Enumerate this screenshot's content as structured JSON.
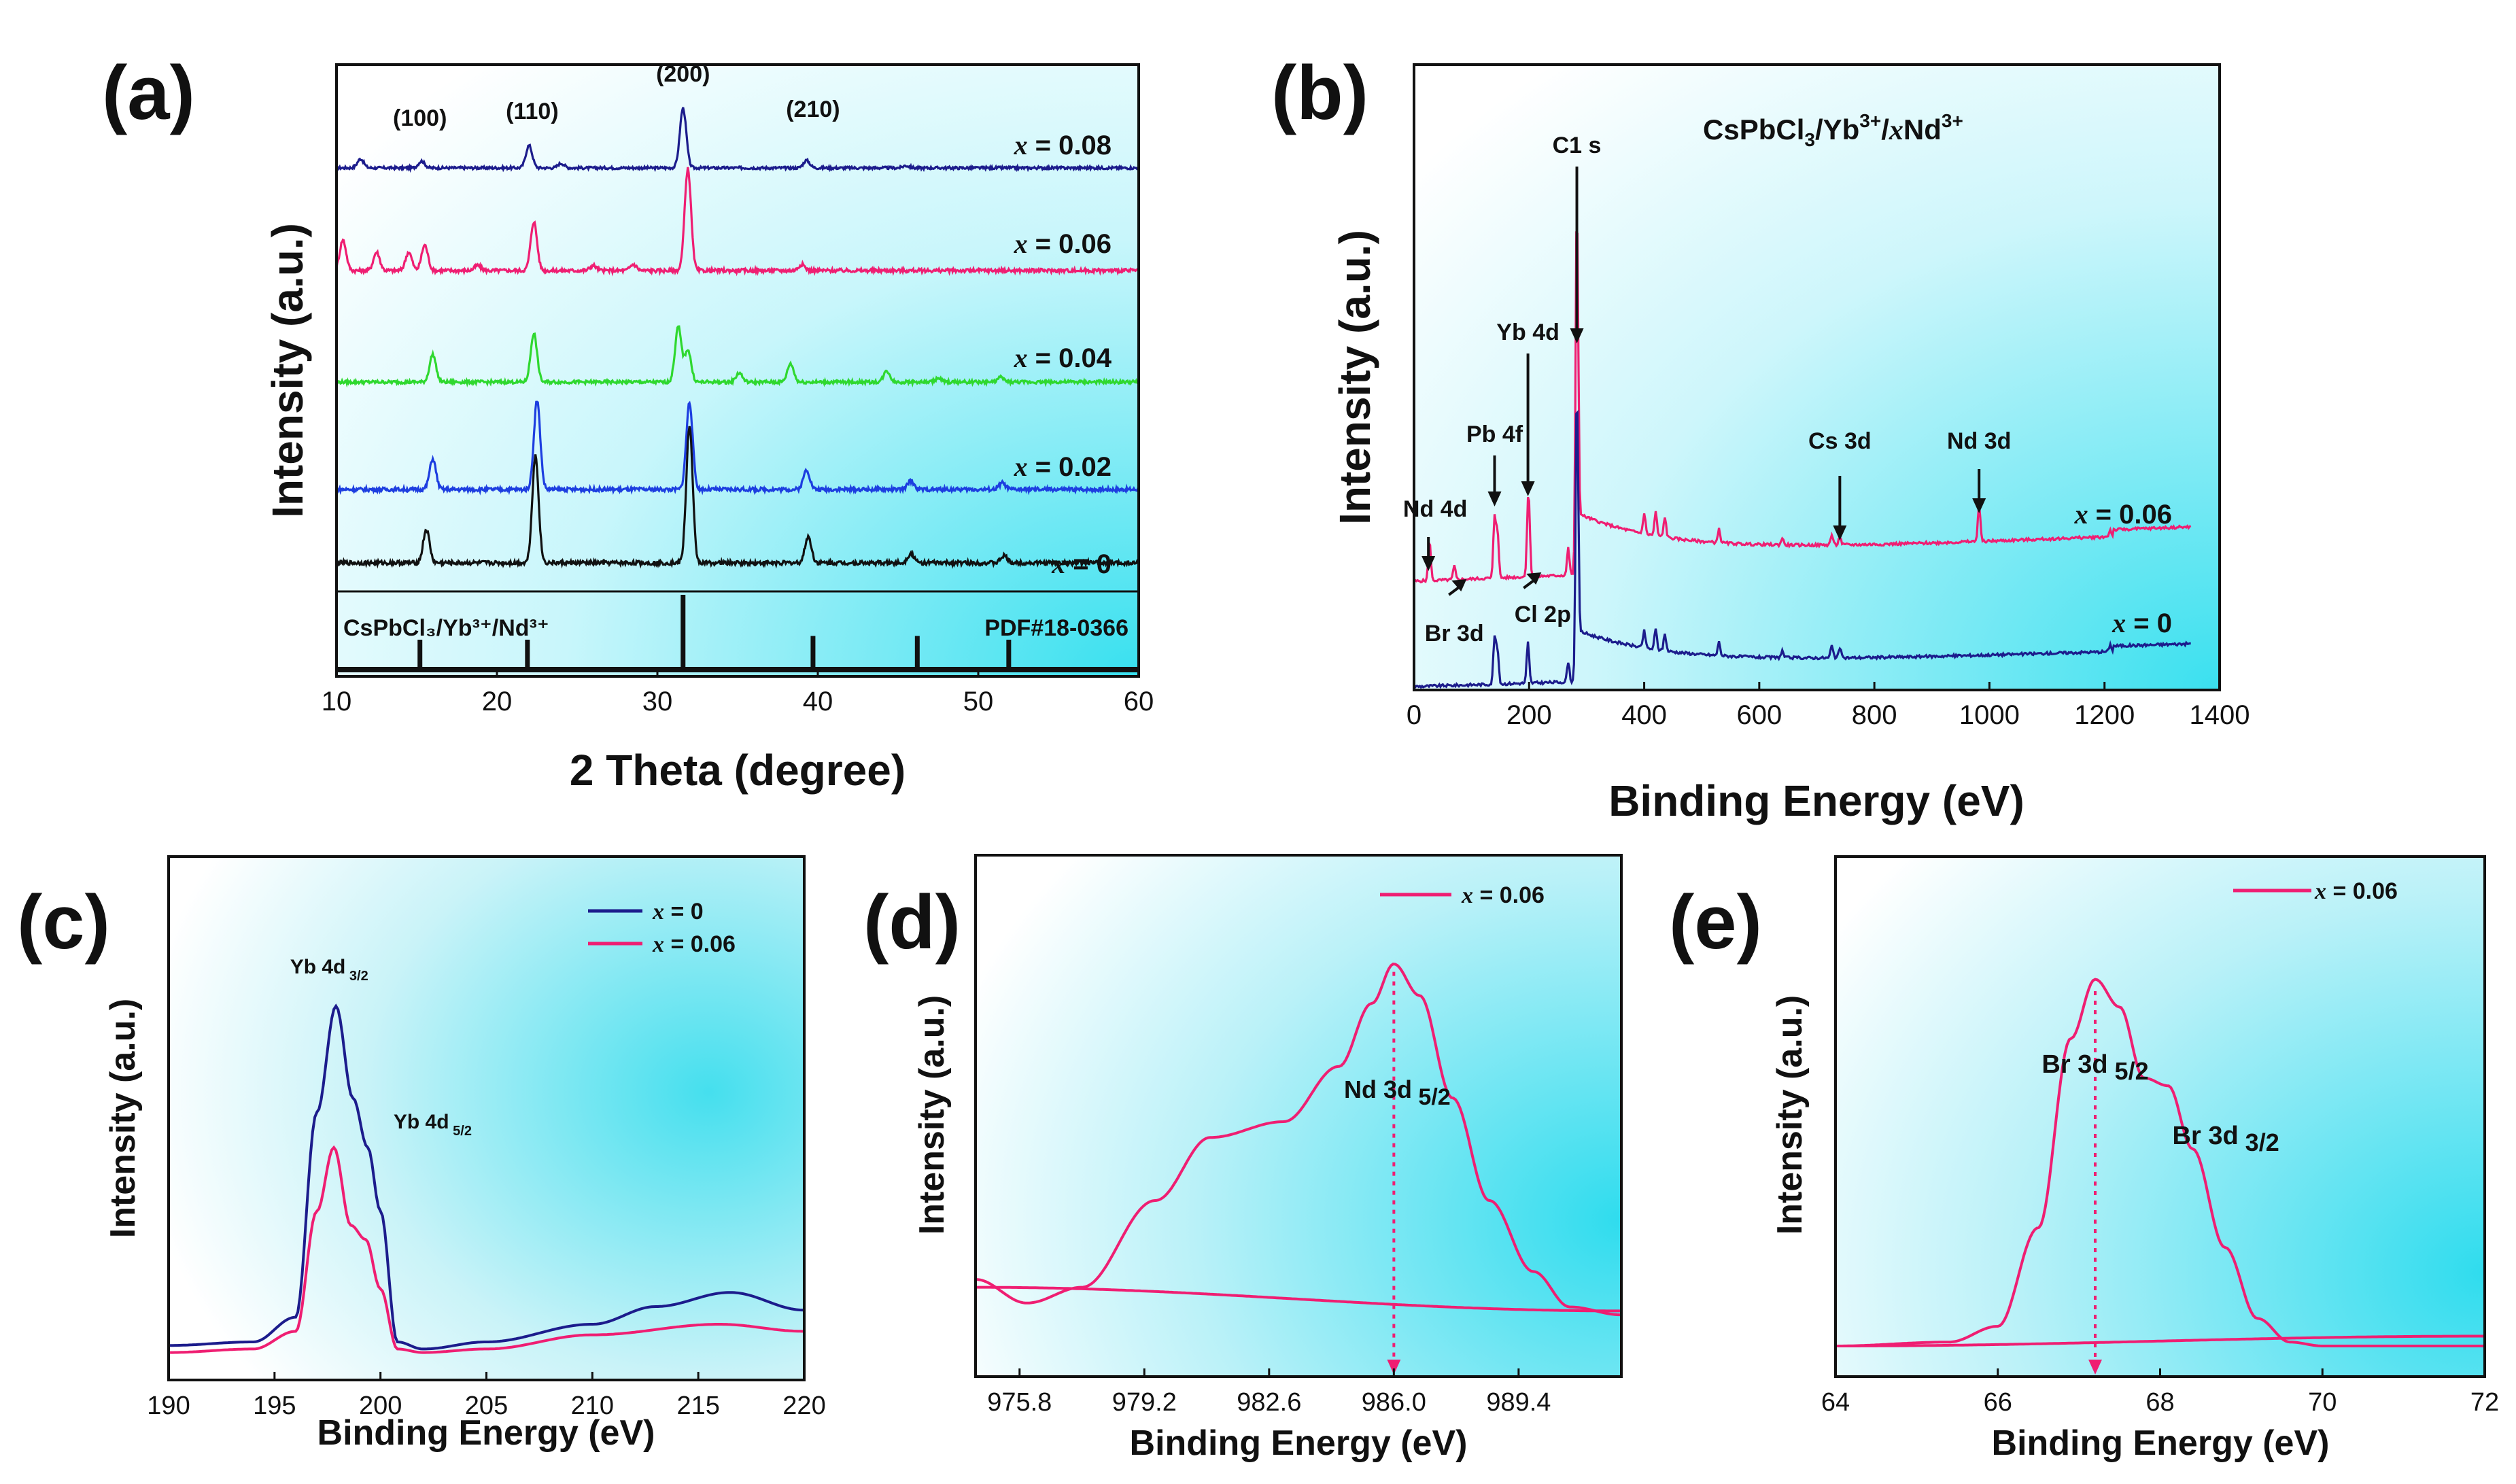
{
  "panel_labels": [
    "(a)",
    "(b)",
    "(c)",
    "(d)",
    "(e)"
  ],
  "colors": {
    "navy": "#1c1c8c",
    "pink": "#ef1e72",
    "green": "#2fd82f",
    "blue": "#1d3ee0",
    "black": "#111111",
    "cyan": "#34dff0"
  },
  "chart_data": [
    {
      "id": "a",
      "type": "line",
      "title": "",
      "xlabel": "2 Theta (degree)",
      "ylabel": "Intensity (a.u.)",
      "xlim": [
        10,
        60
      ],
      "xticks": [
        10,
        20,
        30,
        40,
        50,
        60
      ],
      "peak_labels": [
        {
          "text": "(100)",
          "x": 15.2
        },
        {
          "text": "(110)",
          "x": 22.2
        },
        {
          "text": "(200)",
          "x": 31.6
        },
        {
          "text": "(210)",
          "x": 39.7
        }
      ],
      "series": [
        {
          "name": "x = 0.08",
          "var": "x",
          "value": "= 0.08",
          "color": "#1c1c8c",
          "offset": 4,
          "peaks": [
            [
              11.5,
              0.12
            ],
            [
              15.3,
              0.09
            ],
            [
              22.0,
              0.3
            ],
            [
              24.0,
              0.06
            ],
            [
              31.6,
              0.8
            ],
            [
              39.3,
              0.1
            ],
            [
              45.5,
              0.03
            ]
          ]
        },
        {
          "name": "x = 0.06",
          "var": "x",
          "value": "= 0.06",
          "color": "#ef1e72",
          "offset": 3,
          "peaks": [
            [
              10.4,
              0.3
            ],
            [
              12.5,
              0.18
            ],
            [
              14.5,
              0.18
            ],
            [
              15.5,
              0.25
            ],
            [
              18.8,
              0.05
            ],
            [
              22.3,
              0.48
            ],
            [
              26.0,
              0.05
            ],
            [
              28.5,
              0.06
            ],
            [
              31.9,
              1.0
            ],
            [
              39.0,
              0.06
            ]
          ]
        },
        {
          "name": "x = 0.04",
          "var": "x",
          "value": "= 0.04",
          "color": "#2fd82f",
          "offset": 2,
          "peaks": [
            [
              16.0,
              0.3
            ],
            [
              22.3,
              0.53
            ],
            [
              31.3,
              0.6
            ],
            [
              31.9,
              0.35
            ],
            [
              35.1,
              0.1
            ],
            [
              38.3,
              0.2
            ],
            [
              44.3,
              0.12
            ],
            [
              47.5,
              0.04
            ],
            [
              51.4,
              0.05
            ]
          ]
        },
        {
          "name": "x = 0.02",
          "var": "x",
          "value": "= 0.02",
          "color": "#1d3ee0",
          "offset": 1,
          "peaks": [
            [
              16.0,
              0.28
            ],
            [
              22.5,
              0.82
            ],
            [
              32.0,
              0.8
            ],
            [
              39.3,
              0.18
            ],
            [
              45.8,
              0.08
            ],
            [
              51.5,
              0.06
            ]
          ]
        },
        {
          "name": "x = 0",
          "var": "x",
          "value": "= 0",
          "color": "#111111",
          "offset": 0,
          "peaks": [
            [
              15.6,
              0.28
            ],
            [
              22.4,
              0.9
            ],
            [
              32.0,
              1.15
            ],
            [
              39.4,
              0.22
            ],
            [
              45.8,
              0.08
            ],
            [
              51.6,
              0.06
            ]
          ]
        }
      ],
      "reference": {
        "label_left": "CsPbCl₃/Yb³⁺/Nd³⁺",
        "label_right": "PDF#18-0366",
        "sticks": [
          [
            15.2,
            0.4
          ],
          [
            21.9,
            0.4
          ],
          [
            31.6,
            1.0
          ],
          [
            39.7,
            0.45
          ],
          [
            46.2,
            0.45
          ],
          [
            51.9,
            0.4
          ]
        ]
      }
    },
    {
      "id": "b",
      "type": "line",
      "title": "CsPbCl₃/Yb³⁺/xNd³⁺",
      "xlabel": "Binding Energy (eV)",
      "ylabel": "Intensity (a.u.)",
      "xlim": [
        0,
        1400
      ],
      "xticks": [
        0,
        200,
        400,
        600,
        800,
        1000,
        1200,
        1400
      ],
      "annotations": [
        {
          "text": "C1 s",
          "x": 283
        },
        {
          "text": "Yb 4d",
          "x": 198
        },
        {
          "text": "Pb 4f",
          "x": 140
        },
        {
          "text": "Nd 4d",
          "x": 25
        },
        {
          "text": "Cs 3d",
          "x": 740
        },
        {
          "text": "Nd 3d",
          "x": 982
        },
        {
          "text": "Br 3d",
          "x": 70
        },
        {
          "text": "Cl 2p",
          "x": 200
        }
      ],
      "series": [
        {
          "name": "x = 0.06",
          "var": "x",
          "value": "= 0.06",
          "color": "#ef1e72"
        },
        {
          "name": "x = 0",
          "var": "x",
          "value": "= 0",
          "color": "#1c1c8c"
        }
      ]
    },
    {
      "id": "c",
      "type": "line",
      "xlabel": "Binding Energy (eV)",
      "ylabel": "Intensity (a.u.)",
      "xlim": [
        190,
        220
      ],
      "xticks": [
        190,
        195,
        200,
        205,
        210,
        215,
        220
      ],
      "annotations": [
        {
          "text": "Yb 4d",
          "sub": "3/2",
          "x": 197.9
        },
        {
          "text": "Yb 4d",
          "sub": "5/2",
          "x": 199.5
        }
      ],
      "series": [
        {
          "name": "x = 0",
          "var": "x",
          "value": "= 0",
          "color": "#1c1c8c",
          "x": [
            190,
            194,
            196,
            197,
            197.9,
            198.7,
            199.4,
            200.0,
            200.8,
            202,
            205,
            210,
            213,
            216.5,
            220
          ],
          "y": [
            0.04,
            0.05,
            0.12,
            0.7,
            1.0,
            0.74,
            0.6,
            0.42,
            0.05,
            0.03,
            0.05,
            0.1,
            0.15,
            0.19,
            0.14
          ]
        },
        {
          "name": "x = 0.06",
          "var": "x",
          "value": "= 0.06",
          "color": "#ef1e72",
          "x": [
            190,
            194,
            196,
            197,
            197.8,
            198.6,
            199.3,
            200.0,
            200.8,
            202,
            205,
            210,
            216,
            220
          ],
          "y": [
            0.02,
            0.03,
            0.08,
            0.42,
            0.6,
            0.38,
            0.34,
            0.2,
            0.03,
            0.02,
            0.03,
            0.07,
            0.1,
            0.08
          ]
        }
      ]
    },
    {
      "id": "d",
      "type": "line",
      "xlabel": "Binding Energy (eV)",
      "ylabel": "Intensity (a.u.)",
      "xlim": [
        974.6,
        992.2
      ],
      "xticks": [
        975.8,
        979.2,
        982.6,
        986.0,
        989.4
      ],
      "xtick_labels": [
        "975.8",
        "979.2",
        "982.6",
        "986.0",
        "989.4"
      ],
      "annotations": [
        {
          "text": "Nd 3d",
          "sub": "5/2",
          "x": 986.0
        }
      ],
      "series": [
        {
          "name": "x = 0.06",
          "var": "x",
          "value": "= 0.06",
          "color": "#ef1e72",
          "x": [
            974.6,
            976.0,
            977.5,
            979.5,
            981.0,
            983.0,
            984.5,
            985.4,
            986.0,
            986.7,
            987.6,
            988.6,
            989.8,
            990.8,
            992.2
          ],
          "y": [
            0.1,
            0.04,
            0.08,
            0.3,
            0.46,
            0.5,
            0.64,
            0.8,
            0.9,
            0.82,
            0.56,
            0.3,
            0.12,
            0.03,
            0.01
          ]
        },
        {
          "name": "baseline",
          "color": "#ef1e72",
          "x": [
            974.6,
            992.2
          ],
          "y": [
            0.08,
            0.02
          ]
        }
      ]
    },
    {
      "id": "e",
      "type": "line",
      "xlabel": "Binding Energy (eV)",
      "ylabel": "Intensity (a.u.)",
      "xlim": [
        64,
        72
      ],
      "xticks": [
        64,
        66,
        68,
        70,
        72
      ],
      "annotations": [
        {
          "text": "Br 3d",
          "sub": "5/2",
          "x": 67.2
        },
        {
          "text": "Br 3d",
          "sub": "3/2",
          "x": 68.1
        }
      ],
      "series": [
        {
          "name": "x = 0.06",
          "var": "x",
          "value": "= 0.06",
          "color": "#ef1e72",
          "x": [
            64,
            65.4,
            66.0,
            66.5,
            66.9,
            67.2,
            67.5,
            67.8,
            68.1,
            68.4,
            68.8,
            69.2,
            69.6,
            70,
            72
          ],
          "y": [
            0.0,
            0.01,
            0.05,
            0.3,
            0.78,
            0.93,
            0.86,
            0.68,
            0.66,
            0.5,
            0.25,
            0.07,
            0.01,
            0.0,
            0.0
          ]
        },
        {
          "name": "baseline",
          "color": "#ef1e72",
          "x": [
            64,
            72
          ],
          "y": [
            0.0,
            0.025
          ]
        }
      ]
    }
  ]
}
